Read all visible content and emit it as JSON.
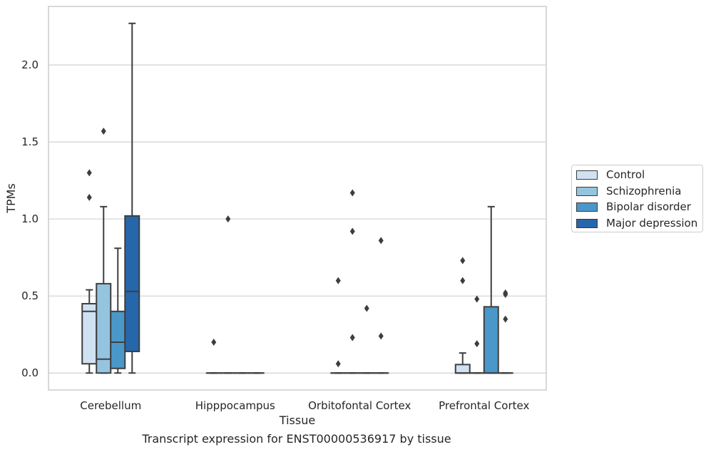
{
  "caption": "Transcript expression for ENST00000536917 by tissue",
  "chart_data": {
    "type": "box",
    "xlabel": "Tissue",
    "ylabel": "TPMs",
    "ylim": [
      -0.11,
      2.38
    ],
    "yticks": [
      0.0,
      0.5,
      1.0,
      1.5,
      2.0
    ],
    "ytick_labels": [
      "0.0",
      "0.5",
      "1.0",
      "1.5",
      "2.0"
    ],
    "grid": "horizontal",
    "legend_position": "right",
    "categories": [
      "Cerebellum",
      "Hipppocampus",
      "Orbitofontal Cortex",
      "Prefrontal Cortex"
    ],
    "series": [
      {
        "name": "Control",
        "color": "#d0e1f2",
        "boxes": [
          {
            "q1": 0.06,
            "median": 0.4,
            "q3": 0.45,
            "whisker_low": 0.0,
            "whisker_high": 0.54,
            "outliers": [
              1.14,
              1.3
            ]
          },
          {
            "q1": 0.0,
            "median": 0.0,
            "q3": 0.0,
            "whisker_low": 0.0,
            "whisker_high": 0.0,
            "outliers": [
              0.2
            ]
          },
          {
            "q1": 0.0,
            "median": 0.0,
            "q3": 0.0,
            "whisker_low": 0.0,
            "whisker_high": 0.0,
            "outliers": [
              0.06,
              0.6
            ]
          },
          {
            "q1": 0.0,
            "median": 0.0,
            "q3": 0.055,
            "whisker_low": 0.0,
            "whisker_high": 0.13,
            "outliers": [
              0.6,
              0.73
            ]
          }
        ]
      },
      {
        "name": "Schizophrenia",
        "color": "#94c4df",
        "boxes": [
          {
            "q1": 0.0,
            "median": 0.09,
            "q3": 0.58,
            "whisker_low": 0.0,
            "whisker_high": 1.08,
            "outliers": [
              1.57
            ]
          },
          {
            "q1": 0.0,
            "median": 0.0,
            "q3": 0.0,
            "whisker_low": 0.0,
            "whisker_high": 0.0,
            "outliers": [
              1.0
            ]
          },
          {
            "q1": 0.0,
            "median": 0.0,
            "q3": 0.0,
            "whisker_low": 0.0,
            "whisker_high": 0.0,
            "outliers": [
              0.23,
              0.92,
              1.17
            ]
          },
          {
            "q1": 0.0,
            "median": 0.0,
            "q3": 0.0,
            "whisker_low": 0.0,
            "whisker_high": 0.0,
            "outliers": [
              0.19,
              0.48
            ]
          }
        ]
      },
      {
        "name": "Bipolar disorder",
        "color": "#4a98c9",
        "boxes": [
          {
            "q1": 0.03,
            "median": 0.2,
            "q3": 0.4,
            "whisker_low": 0.0,
            "whisker_high": 0.81,
            "outliers": []
          },
          {
            "q1": 0.0,
            "median": 0.0,
            "q3": 0.0,
            "whisker_low": 0.0,
            "whisker_high": 0.0,
            "outliers": []
          },
          {
            "q1": 0.0,
            "median": 0.0,
            "q3": 0.0,
            "whisker_low": 0.0,
            "whisker_high": 0.0,
            "outliers": [
              0.42
            ]
          },
          {
            "q1": 0.0,
            "median": 0.0,
            "q3": 0.43,
            "whisker_low": 0.0,
            "whisker_high": 1.08,
            "outliers": []
          }
        ]
      },
      {
        "name": "Major depression",
        "color": "#2666ab",
        "boxes": [
          {
            "q1": 0.14,
            "median": 0.53,
            "q3": 1.02,
            "whisker_low": 0.0,
            "whisker_high": 2.27,
            "outliers": []
          },
          {
            "q1": 0.0,
            "median": 0.0,
            "q3": 0.0,
            "whisker_low": 0.0,
            "whisker_high": 0.0,
            "outliers": []
          },
          {
            "q1": 0.0,
            "median": 0.0,
            "q3": 0.0,
            "whisker_low": 0.0,
            "whisker_high": 0.0,
            "outliers": [
              0.24,
              0.86
            ]
          },
          {
            "q1": 0.0,
            "median": 0.0,
            "q3": 0.0,
            "whisker_low": 0.0,
            "whisker_high": 0.0,
            "outliers": [
              0.35,
              0.51,
              0.52
            ]
          }
        ]
      }
    ]
  }
}
